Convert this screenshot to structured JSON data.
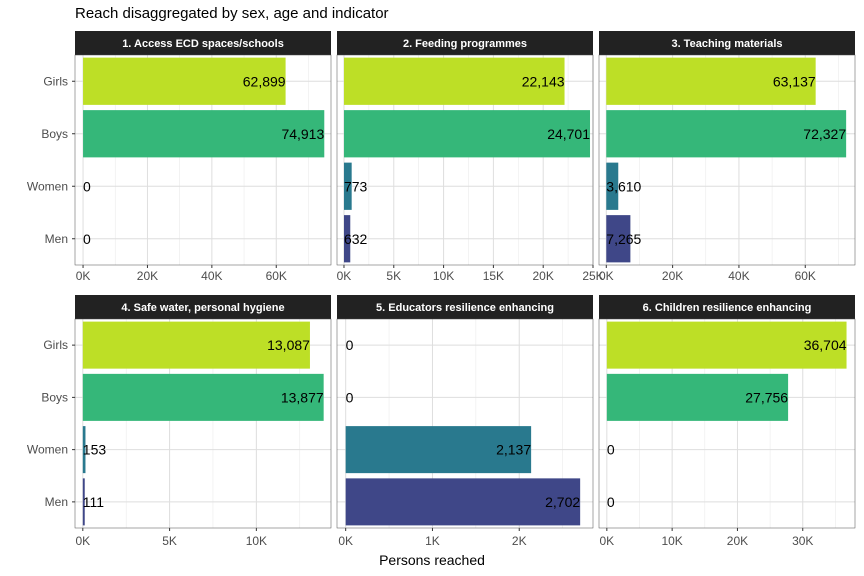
{
  "chart_data": {
    "type": "bar",
    "orientation": "horizontal",
    "title": "Reach disaggregated by sex, age and indicator",
    "xlabel": "Persons reached",
    "ylabel": "",
    "categories": [
      "Girls",
      "Boys",
      "Women",
      "Men"
    ],
    "colors": {
      "Girls": "#bddf26",
      "Boys": "#35b779",
      "Women": "#29798e",
      "Men": "#3f4788"
    },
    "grid": true,
    "legend": "none",
    "panels": [
      {
        "title": "1. Access ECD spaces/schools",
        "values": [
          62899,
          74913,
          0,
          0
        ],
        "labels": [
          "62,899",
          "74,913",
          "0",
          "0"
        ],
        "xlim": [
          -2500,
          77000
        ],
        "ticks": [
          0,
          20000,
          40000,
          60000
        ],
        "tick_labels": [
          "0K",
          "20K",
          "40K",
          "60K"
        ]
      },
      {
        "title": "2. Feeding programmes",
        "values": [
          22143,
          24701,
          773,
          632
        ],
        "labels": [
          "22,143",
          "24,701",
          "773",
          "632"
        ],
        "xlim": [
          -700,
          25000
        ],
        "ticks": [
          0,
          5000,
          10000,
          15000,
          20000,
          25000
        ],
        "tick_labels": [
          "0K",
          "5K",
          "10K",
          "15K",
          "20K",
          "25K"
        ]
      },
      {
        "title": "3. Teaching materials",
        "values": [
          63137,
          72327,
          3610,
          7265
        ],
        "labels": [
          "63,137",
          "72,327",
          "3,610",
          "7,265"
        ],
        "xlim": [
          -2200,
          75000
        ],
        "ticks": [
          0,
          20000,
          40000,
          60000
        ],
        "tick_labels": [
          "0K",
          "20K",
          "40K",
          "60K"
        ]
      },
      {
        "title": "4. Safe water, personal hygiene",
        "values": [
          13087,
          13877,
          153,
          111
        ],
        "labels": [
          "13,087",
          "13,877",
          "153",
          "111"
        ],
        "xlim": [
          -450,
          14300
        ],
        "ticks": [
          0,
          5000,
          10000
        ],
        "tick_labels": [
          "0K",
          "5K",
          "10K"
        ]
      },
      {
        "title": "5. Educators resilience enhancing",
        "values": [
          0,
          0,
          2137,
          2702
        ],
        "labels": [
          "0",
          "0",
          "2,137",
          "2,702"
        ],
        "xlim": [
          -100,
          2850
        ],
        "ticks": [
          0,
          1000,
          2000
        ],
        "tick_labels": [
          "0K",
          "1K",
          "2K"
        ]
      },
      {
        "title": "6. Children resilience enhancing",
        "values": [
          36704,
          27756,
          0,
          0
        ],
        "labels": [
          "36,704",
          "27,756",
          "0",
          "0"
        ],
        "xlim": [
          -1200,
          38000
        ],
        "ticks": [
          0,
          10000,
          20000,
          30000
        ],
        "tick_labels": [
          "0K",
          "10K",
          "20K",
          "30K"
        ]
      }
    ]
  }
}
